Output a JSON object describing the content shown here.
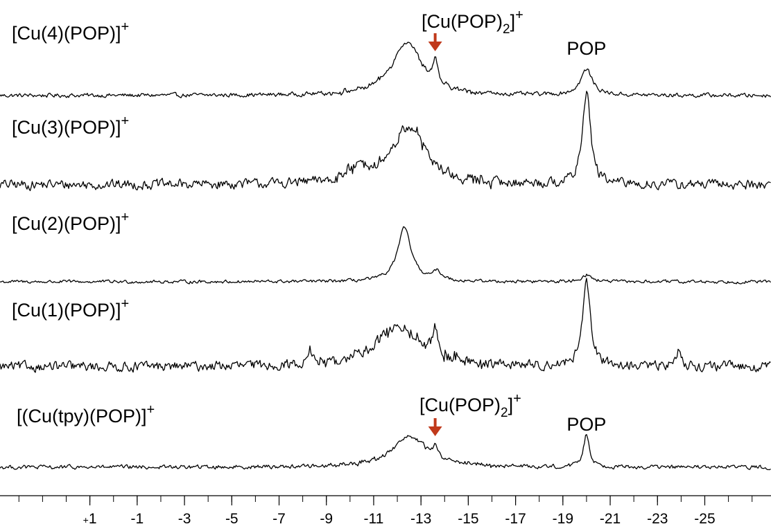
{
  "chart_data": {
    "type": "line",
    "title": "",
    "xlabel": "",
    "ylabel": "",
    "x_reversed": true,
    "xlim": [
      4.8,
      -27.8
    ],
    "x_ticks": [
      {
        "value": 1,
        "label": "+1"
      },
      {
        "value": -1,
        "label": "-1"
      },
      {
        "value": -3,
        "label": "-3"
      },
      {
        "value": -5,
        "label": "-5"
      },
      {
        "value": -7,
        "label": "-7"
      },
      {
        "value": -9,
        "label": "-9"
      },
      {
        "value": -11,
        "label": "-11"
      },
      {
        "value": -13,
        "label": "-13"
      },
      {
        "value": -15,
        "label": "-15"
      },
      {
        "value": -17,
        "label": "-17"
      },
      {
        "value": -19,
        "label": "-19"
      },
      {
        "value": -21,
        "label": "-21"
      },
      {
        "value": -23,
        "label": "-23"
      },
      {
        "value": -25,
        "label": "-25"
      }
    ],
    "colors": {
      "trace": "#000000",
      "arrow": "#c0391b"
    },
    "series": [
      {
        "name": "[Cu(4)(POP)]",
        "charge": "+",
        "noise": 2.5,
        "peaks": [
          {
            "x": -12.4,
            "height": 78,
            "width": 0.75,
            "wings": 0.1
          },
          {
            "x": -13.6,
            "height": 33,
            "width": 0.12
          },
          {
            "x": -20.0,
            "height": 37,
            "width": 0.3
          }
        ],
        "annotations": [
          {
            "type": "arrow",
            "x": -13.6,
            "main": "[Cu(POP)",
            "sub": "2",
            "sup": "+"
          },
          {
            "type": "text",
            "x": -20.0,
            "text": "POP"
          }
        ]
      },
      {
        "name": "[Cu(3)(POP)]",
        "charge": "+",
        "noise": 6,
        "peaks": [
          {
            "x": -12.5,
            "height": 84,
            "width": 0.8,
            "wings": 0.12
          },
          {
            "x": -20.0,
            "height": 136,
            "width": 0.2
          },
          {
            "x": -10.5,
            "height": 18,
            "width": 0.8
          }
        ],
        "annotations": []
      },
      {
        "name": "[Cu(2)(POP)]",
        "charge": "+",
        "noise": 2,
        "peaks": [
          {
            "x": -12.3,
            "height": 77,
            "width": 0.35
          },
          {
            "x": -13.7,
            "height": 12,
            "width": 0.25
          },
          {
            "x": -20.0,
            "height": 10,
            "width": 0.25
          }
        ],
        "annotations": []
      },
      {
        "name": "[Cu(1)(POP)]",
        "charge": "+",
        "noise": 6,
        "peaks": [
          {
            "x": -12.1,
            "height": 57,
            "width": 1.2,
            "wings": 0.15
          },
          {
            "x": -13.6,
            "height": 37,
            "width": 0.1
          },
          {
            "x": -20.0,
            "height": 118,
            "width": 0.2
          },
          {
            "x": -8.3,
            "height": 22,
            "width": 0.1
          },
          {
            "x": -23.9,
            "height": 22,
            "width": 0.15
          }
        ],
        "annotations": []
      },
      {
        "name": "[(Cu(tpy)(POP)]",
        "charge": "+",
        "noise": 2.5,
        "peaks": [
          {
            "x": -12.5,
            "height": 44,
            "width": 0.9,
            "wings": 0.2
          },
          {
            "x": -13.6,
            "height": 16,
            "width": 0.12
          },
          {
            "x": -20.0,
            "height": 48,
            "width": 0.15
          }
        ],
        "annotations": [
          {
            "type": "arrow",
            "x": -13.6,
            "main": "[Cu(POP)",
            "sub": "2",
            "sup": "+"
          },
          {
            "type": "text",
            "x": -20.0,
            "text": "POP"
          }
        ]
      }
    ]
  }
}
